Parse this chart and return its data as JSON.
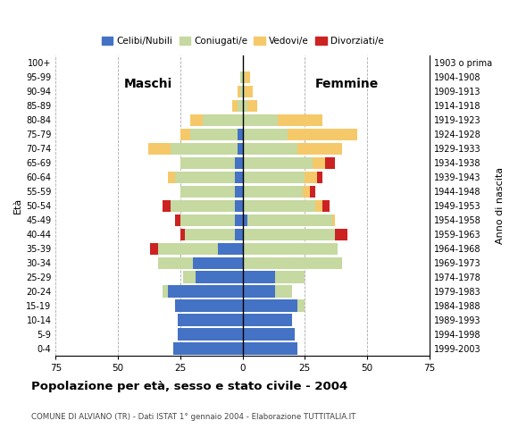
{
  "age_groups": [
    "0-4",
    "5-9",
    "10-14",
    "15-19",
    "20-24",
    "25-29",
    "30-34",
    "35-39",
    "40-44",
    "45-49",
    "50-54",
    "55-59",
    "60-64",
    "65-69",
    "70-74",
    "75-79",
    "80-84",
    "85-89",
    "90-94",
    "95-99",
    "100+"
  ],
  "birth_years": [
    "1999-2003",
    "1994-1998",
    "1989-1993",
    "1984-1988",
    "1979-1983",
    "1974-1978",
    "1969-1973",
    "1964-1968",
    "1959-1963",
    "1954-1958",
    "1949-1953",
    "1944-1948",
    "1939-1943",
    "1934-1938",
    "1929-1933",
    "1924-1928",
    "1919-1923",
    "1914-1918",
    "1909-1913",
    "1904-1908",
    "1903 o prima"
  ],
  "males": {
    "celibe": [
      28,
      26,
      26,
      27,
      30,
      19,
      20,
      10,
      3,
      3,
      3,
      3,
      3,
      3,
      2,
      2,
      0,
      0,
      0,
      0,
      0
    ],
    "coniugato": [
      0,
      0,
      0,
      0,
      2,
      5,
      14,
      24,
      20,
      22,
      26,
      22,
      24,
      22,
      27,
      19,
      16,
      2,
      1,
      1,
      0
    ],
    "vedovo": [
      0,
      0,
      0,
      0,
      0,
      0,
      0,
      0,
      0,
      0,
      0,
      0,
      3,
      0,
      9,
      4,
      5,
      2,
      1,
      0,
      0
    ],
    "divorziato": [
      0,
      0,
      0,
      0,
      0,
      0,
      0,
      3,
      2,
      2,
      3,
      0,
      0,
      0,
      0,
      0,
      0,
      0,
      0,
      0,
      0
    ]
  },
  "females": {
    "nubile": [
      22,
      21,
      20,
      22,
      13,
      13,
      0,
      0,
      0,
      2,
      0,
      0,
      0,
      0,
      0,
      0,
      0,
      0,
      0,
      0,
      0
    ],
    "coniugata": [
      0,
      0,
      0,
      3,
      7,
      12,
      40,
      38,
      37,
      34,
      29,
      24,
      25,
      28,
      22,
      18,
      14,
      2,
      1,
      1,
      0
    ],
    "vedova": [
      0,
      0,
      0,
      0,
      0,
      0,
      0,
      0,
      0,
      1,
      3,
      3,
      5,
      5,
      18,
      28,
      18,
      4,
      3,
      2,
      0
    ],
    "divorziata": [
      0,
      0,
      0,
      0,
      0,
      0,
      0,
      0,
      5,
      0,
      3,
      2,
      2,
      4,
      0,
      0,
      0,
      0,
      0,
      0,
      0
    ]
  },
  "colors": {
    "celibe": "#4472C4",
    "coniugato": "#c5d9a0",
    "vedovo": "#f5c96a",
    "divorziato": "#cc2222"
  },
  "xlim": 75,
  "title": "Popolazione per età, sesso e stato civile - 2004",
  "subtitle": "COMUNE DI ALVIANO (TR) - Dati ISTAT 1° gennaio 2004 - Elaborazione TUTTITALIA.IT",
  "label_left": "Maschi",
  "label_right": "Femmine",
  "ylabel_left": "Età",
  "ylabel_right": "Anno di nascita",
  "bg_color": "#ffffff",
  "grid_color": "#aaaaaa",
  "legend": [
    "Celibi/Nubili",
    "Coniugati/e",
    "Vedovi/e",
    "Divorziati/e"
  ]
}
